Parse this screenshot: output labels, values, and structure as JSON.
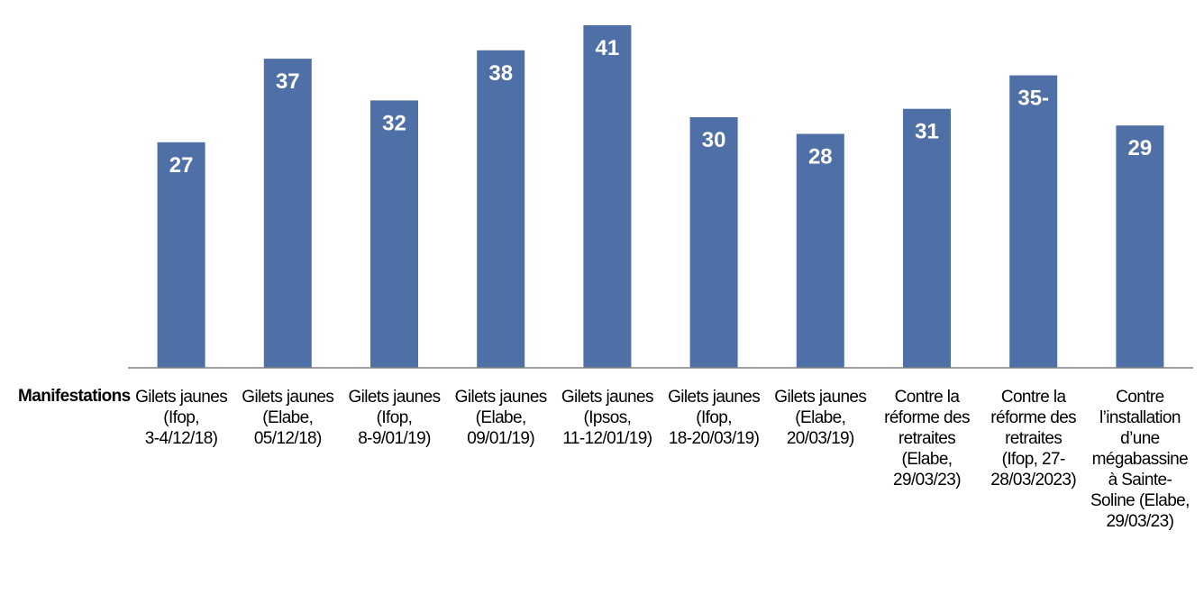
{
  "chart_data": {
    "type": "bar",
    "row_label": "Manifestations",
    "categories": [
      "Gilets jaunes (Ifop, 3-4/12/18)",
      "Gilets jaunes (Elabe, 05/12/18)",
      "Gilets jaunes (Ifop, 8-9/01/19)",
      "Gilets jaunes (Elabe, 09/01/19)",
      "Gilets jaunes (Ipsos, 11-12/01/19)",
      "Gilets jaunes (Ifop, 18-20/03/19)",
      "Gilets jaunes (Elabe, 20/03/19)",
      "Contre la réforme des retraites (Elabe, 29/03/23)",
      "Contre la réforme des retraites (Ifop, 27-28/03/2023)",
      "Contre l’installation d’une mégabassine à Sainte-Soline (Elabe, 29/03/23)"
    ],
    "values": [
      27,
      37,
      32,
      38,
      41,
      30,
      28,
      31,
      35,
      29
    ],
    "value_labels": [
      "27",
      "37",
      "32",
      "38",
      "41",
      "30",
      "28",
      "31",
      "35-",
      "29"
    ],
    "ylim": [
      0,
      41
    ],
    "grid": false,
    "legend": "none",
    "colors": {
      "bar": "#4f6fa7",
      "value_label": "#ffffff",
      "axis": "#808080"
    }
  }
}
